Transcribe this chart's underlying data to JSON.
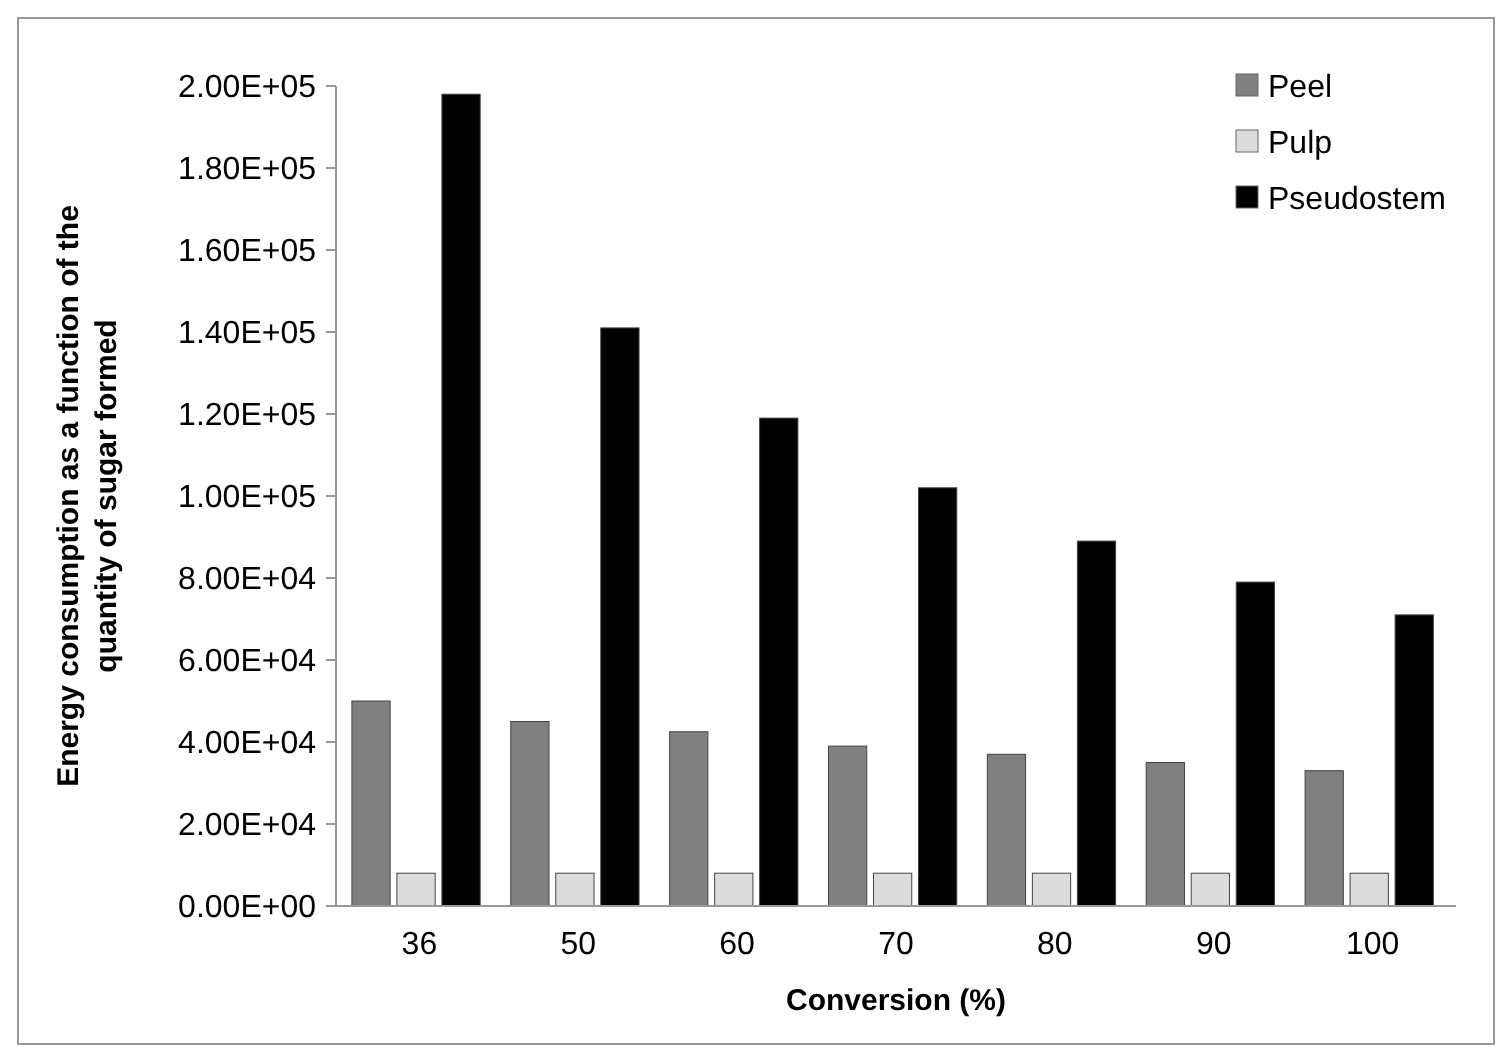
{
  "chart_data": {
    "type": "bar",
    "xlabel": "Conversion (%)",
    "ylabel": "Energy consumption as a function of the quantity of sugar formed",
    "categories": [
      "36",
      "50",
      "60",
      "70",
      "80",
      "90",
      "100"
    ],
    "series": [
      {
        "name": "Peel",
        "color": "#808080",
        "values": [
          50000,
          45000,
          42500,
          39000,
          37000,
          35000,
          33000
        ]
      },
      {
        "name": "Pulp",
        "color": "#dcdcdc",
        "values": [
          8000,
          8000,
          8000,
          8000,
          8000,
          8000,
          8000
        ]
      },
      {
        "name": "Pseudostem",
        "color": "#000000",
        "values": [
          198000,
          141000,
          119000,
          102000,
          89000,
          79000,
          71000
        ]
      }
    ],
    "ylim": [
      0,
      200000
    ],
    "yticks": [
      {
        "value": 0,
        "label": "0.00E+00"
      },
      {
        "value": 20000,
        "label": "2.00E+04"
      },
      {
        "value": 40000,
        "label": "4.00E+04"
      },
      {
        "value": 60000,
        "label": "6.00E+04"
      },
      {
        "value": 80000,
        "label": "8.00E+04"
      },
      {
        "value": 100000,
        "label": "1.00E+05"
      },
      {
        "value": 120000,
        "label": "1.20E+05"
      },
      {
        "value": 140000,
        "label": "1.40E+05"
      },
      {
        "value": 160000,
        "label": "1.60E+05"
      },
      {
        "value": 180000,
        "label": "1.80E+05"
      },
      {
        "value": 200000,
        "label": "2.00E+05"
      }
    ],
    "legend": "top right",
    "grid": false
  }
}
